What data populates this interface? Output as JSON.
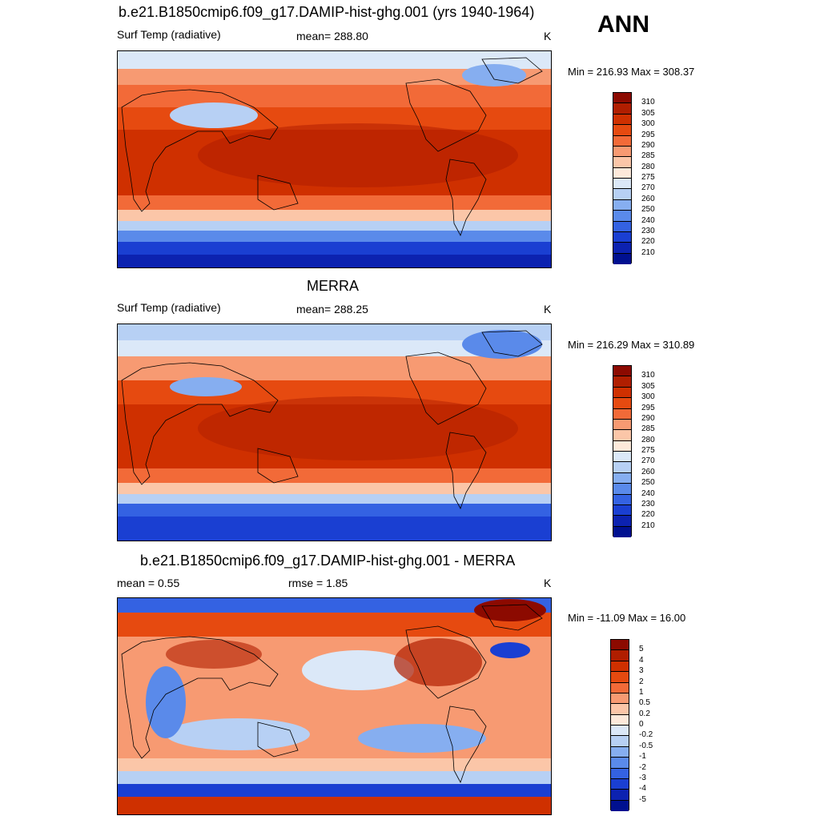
{
  "season": "ANN",
  "panels": [
    {
      "title": "b.e21.B1850cmip6.f09_g17.DAMIP-hist-ghg.001 (yrs 1940-1964)",
      "left_label": "Surf Temp (radiative)",
      "center_label": "mean= 288.80",
      "units": "K",
      "minmax": "Min = 216.93 Max = 308.37"
    },
    {
      "title": "MERRA",
      "left_label": "Surf Temp (radiative)",
      "center_label": "mean= 288.25",
      "units": "K",
      "minmax": "Min = 216.29 Max = 310.89"
    },
    {
      "title": "b.e21.B1850cmip6.f09_g17.DAMIP-hist-ghg.001 - MERRA",
      "left_label": "mean =   0.55",
      "center_label": "rmse =   1.85",
      "units": "K",
      "minmax": "Min = -11.09 Max =  16.00"
    }
  ],
  "colorbar_abs": {
    "labels": [
      "310",
      "305",
      "300",
      "295",
      "290",
      "285",
      "280",
      "275",
      "270",
      "260",
      "250",
      "240",
      "230",
      "220",
      "210"
    ],
    "colors": [
      "#8c0a00",
      "#b01e00",
      "#cf3000",
      "#e64a10",
      "#f26a38",
      "#f79a72",
      "#fbc6a8",
      "#fde9da",
      "#dbe8f8",
      "#b7d0f4",
      "#86aef0",
      "#5a8aea",
      "#3462e2",
      "#1a3fd2",
      "#0c22b0",
      "#001090"
    ]
  },
  "colorbar_diff": {
    "labels": [
      "5",
      "4",
      "3",
      "2",
      "1",
      "0.5",
      "0.2",
      "0",
      "-0.2",
      "-0.5",
      "-1",
      "-2",
      "-3",
      "-4",
      "-5"
    ],
    "colors": [
      "#8c0a00",
      "#b01e00",
      "#cf3000",
      "#e64a10",
      "#f26a38",
      "#f79a72",
      "#fbc6a8",
      "#fde9da",
      "#dbe8f8",
      "#b7d0f4",
      "#86aef0",
      "#5a8aea",
      "#3462e2",
      "#1a3fd2",
      "#0c22b0",
      "#001090"
    ]
  }
}
